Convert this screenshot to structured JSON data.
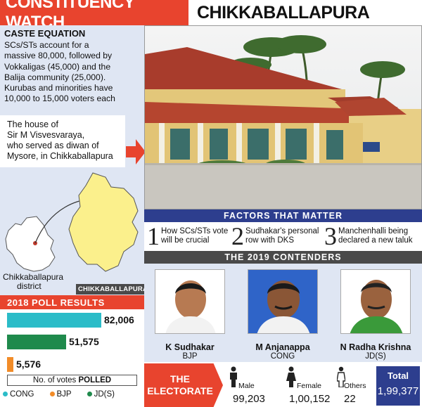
{
  "header": {
    "left_title": "CONSTITUENCY WATCH",
    "right_title": "CHIKKABALLAPURA"
  },
  "caste": {
    "heading": "CASTE EQUATION",
    "lines": [
      "SCs/STs account for a",
      "massive 80,000, followed by",
      "Vokkaligas (45,000) and the",
      "Balija community (25,000).",
      "Kurubas and minorities have",
      "10,000 to 15,000 voters each"
    ]
  },
  "house_caption": {
    "lines": [
      "The house of",
      "Sir M Visvesvaraya,",
      "who served as diwan of",
      "Mysore, in Chikkaballapura"
    ]
  },
  "map": {
    "district_label_1": "Chikkaballapura",
    "district_label_2": "district",
    "badge": "CHIKKABALLAPURA"
  },
  "poll": {
    "title": "2018 POLL RESULTS",
    "votes_label_pre": "No. of votes ",
    "votes_label_bold": "POLLED"
  },
  "chart_data": {
    "type": "bar",
    "title": "2018 POLL RESULTS",
    "categories": [
      "CONG",
      "JD(S)",
      "BJP"
    ],
    "values": [
      82006,
      51575,
      5576
    ],
    "value_labels": [
      "82,006",
      "51,575",
      "5,576"
    ],
    "colors": [
      "#2bbcc8",
      "#1f8a4c",
      "#f28c28"
    ],
    "xlabel": "No. of votes POLLED",
    "legend": [
      {
        "name": "CONG",
        "color": "#2bbcc8"
      },
      {
        "name": "BJP",
        "color": "#f28c28"
      },
      {
        "name": "JD(S)",
        "color": "#1f8a4c"
      }
    ],
    "legend_placement": "bottom"
  },
  "factors": {
    "title": "FACTORS THAT MATTER",
    "items": [
      {
        "num": "1",
        "line1": "How SCs/STs vote",
        "line2": "will be crucial"
      },
      {
        "num": "2",
        "line1": "Sudhakar's personal",
        "line2": "row with DKS"
      },
      {
        "num": "3",
        "line1": "Manchenhalli being",
        "line2": "declared a new taluk"
      }
    ]
  },
  "contenders": {
    "title": "THE 2019 CONTENDERS",
    "items": [
      {
        "name": "K Sudhakar",
        "party": "BJP"
      },
      {
        "name": "M Anjanappa",
        "party": "CONG"
      },
      {
        "name": "N Radha Krishna",
        "party": "JD(S)"
      }
    ]
  },
  "electorate": {
    "label_1": "THE",
    "label_2": "ELECTORATE",
    "male_label": "Male",
    "male_value": "99,203",
    "female_label": "Female",
    "female_value": "1,00,152",
    "others_label": "Others",
    "others_value": "22",
    "total_label": "Total",
    "total_value": "1,99,377"
  },
  "colors": {
    "accent_red": "#e8442e",
    "navy": "#2d3e8e",
    "panel_blue": "#dfe6f3",
    "map_yellow": "#fbf08c"
  }
}
